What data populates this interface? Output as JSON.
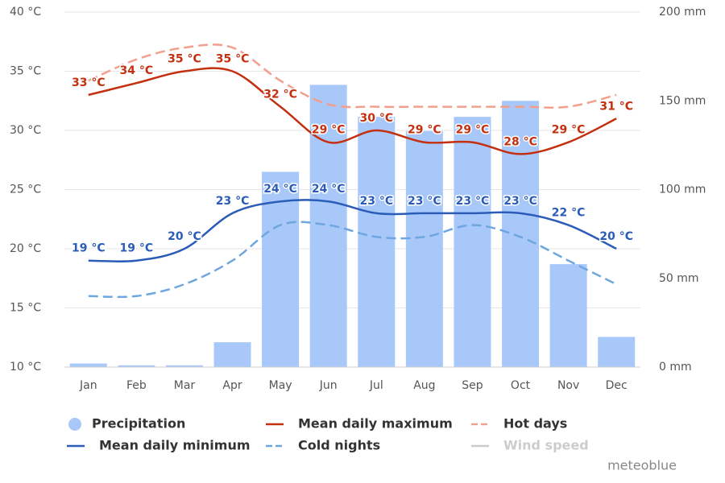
{
  "chart_data": {
    "type": "combo",
    "categories": [
      "Jan",
      "Feb",
      "Mar",
      "Apr",
      "May",
      "Jun",
      "Jul",
      "Aug",
      "Sep",
      "Oct",
      "Nov",
      "Dec"
    ],
    "ylim": [
      10,
      40
    ],
    "yticks": [
      {
        "value": 10,
        "label": "10 °C"
      },
      {
        "value": 15,
        "label": "15 °C"
      },
      {
        "value": 20,
        "label": "20 °C"
      },
      {
        "value": 25,
        "label": "25 °C"
      },
      {
        "value": 30,
        "label": "30 °C"
      },
      {
        "value": 35,
        "label": "35 °C"
      },
      {
        "value": 40,
        "label": "40 °C"
      }
    ],
    "y2lim": [
      0,
      200
    ],
    "y2ticks": [
      {
        "value": 0,
        "label": "0 mm"
      },
      {
        "value": 50,
        "label": "50 mm"
      },
      {
        "value": 100,
        "label": "100 mm"
      },
      {
        "value": 150,
        "label": "150 mm"
      },
      {
        "value": 200,
        "label": "200 mm"
      }
    ],
    "grid": true,
    "series": [
      {
        "name": "Precipitation",
        "type": "bar",
        "axis": "y2",
        "color": "#a9c8fa",
        "values": [
          2,
          1,
          1,
          14,
          110,
          159,
          141,
          133,
          141,
          150,
          58,
          17
        ]
      },
      {
        "name": "Mean daily maximum",
        "type": "line",
        "color": "#c4300f",
        "values": [
          33,
          34,
          35,
          35,
          32,
          29,
          30,
          29,
          29,
          28,
          29,
          31
        ],
        "value_labels": [
          "33 °C",
          "34 °C",
          "35 °C",
          "35 °C",
          "32 °C",
          "29 °C",
          "30 °C",
          "29 °C",
          "29 °C",
          "28 °C",
          "29 °C",
          "31 °C"
        ]
      },
      {
        "name": "Hot days",
        "type": "line",
        "dashed": true,
        "color": "#f2a08e",
        "values": [
          34.2,
          36,
          37,
          37,
          34.2,
          32.2,
          32,
          32,
          32,
          32,
          32,
          33
        ]
      },
      {
        "name": "Mean daily minimum",
        "type": "line",
        "color": "#2a5cb8",
        "values": [
          19,
          19,
          20,
          23,
          24,
          24,
          23,
          23,
          23,
          23,
          22,
          20
        ],
        "value_labels": [
          "19 °C",
          "19 °C",
          "20 °C",
          "23 °C",
          "24 °C",
          "24 °C",
          "23 °C",
          "23 °C",
          "23 °C",
          "23 °C",
          "22 °C",
          "20 °C"
        ]
      },
      {
        "name": "Cold nights",
        "type": "line",
        "dashed": true,
        "color": "#6ea6e0",
        "values": [
          16,
          16,
          17,
          19,
          22,
          22,
          21,
          21,
          22,
          21,
          19,
          17
        ]
      },
      {
        "name": "Wind speed",
        "type": "line",
        "hidden": true,
        "color": "#cccccc",
        "values": [
          null,
          null,
          null,
          null,
          null,
          null,
          null,
          null,
          null,
          null,
          null,
          null
        ]
      }
    ],
    "watermark": "meteoblue"
  }
}
